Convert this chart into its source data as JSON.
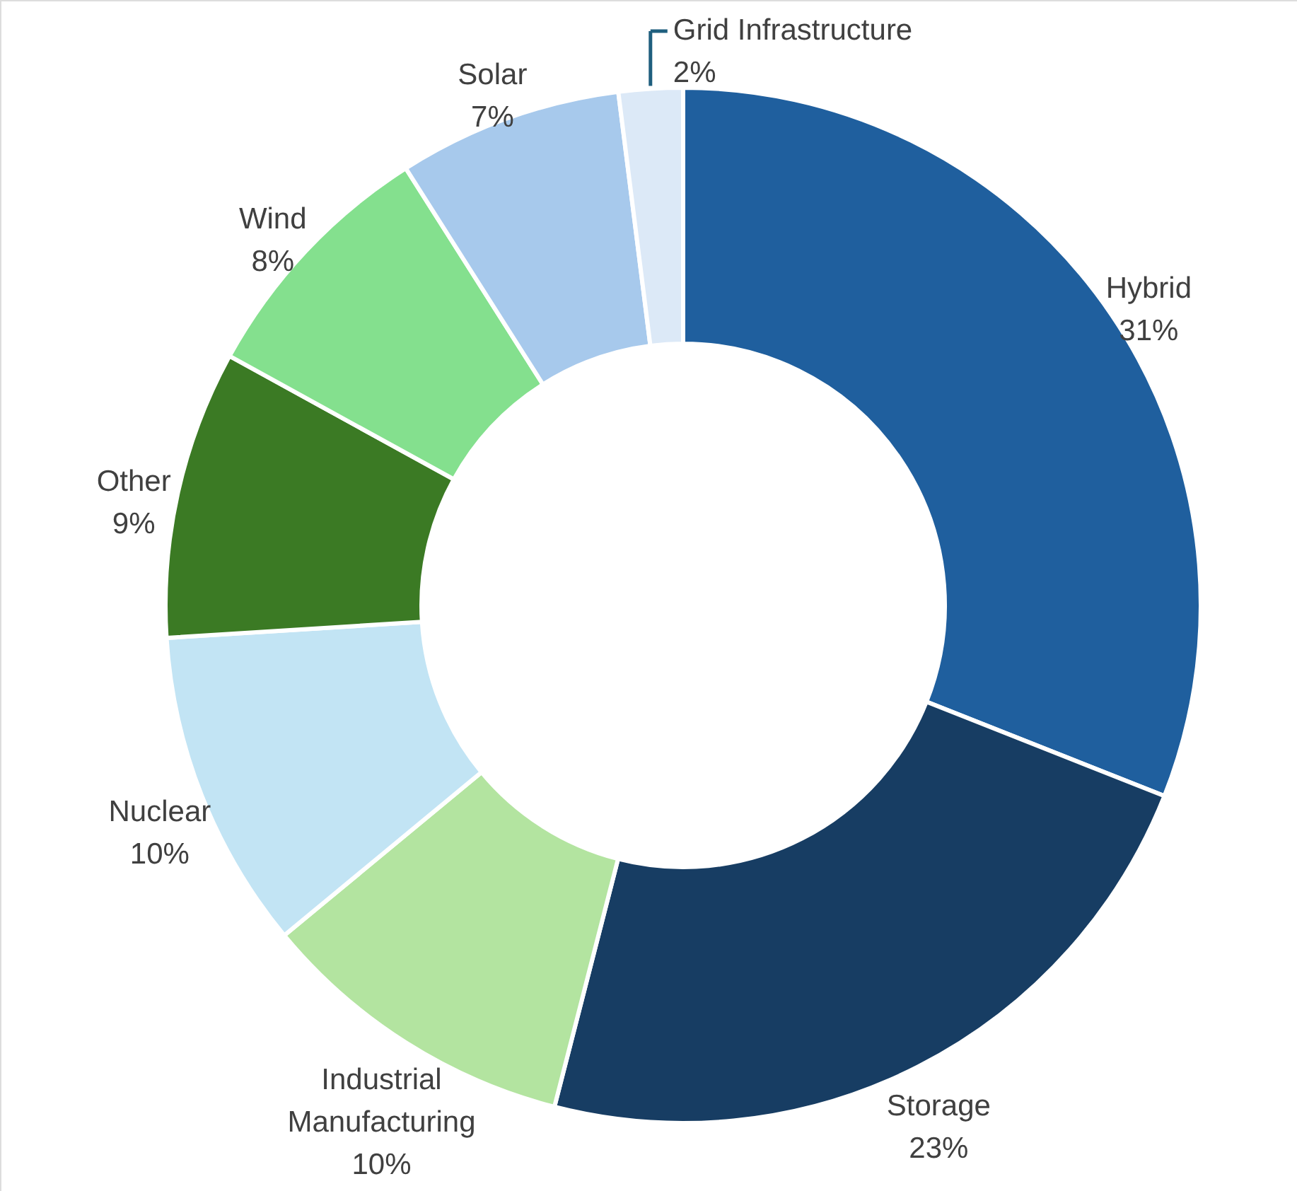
{
  "chart_data": {
    "type": "donut",
    "categories": [
      "Hybrid",
      "Storage",
      "Industrial Manufacturing",
      "Nuclear",
      "Other",
      "Wind",
      "Solar",
      "Grid Infrastructure"
    ],
    "values": [
      31,
      23,
      10,
      10,
      9,
      8,
      7,
      2
    ],
    "value_labels": [
      "31%",
      "23%",
      "10%",
      "10%",
      "9%",
      "8%",
      "7%",
      "2%"
    ],
    "colors": [
      "#1f5f9e",
      "#173d63",
      "#b3e4a0",
      "#c2e4f4",
      "#3b7a24",
      "#84e08e",
      "#a7c9ec",
      "#dce9f7"
    ]
  }
}
